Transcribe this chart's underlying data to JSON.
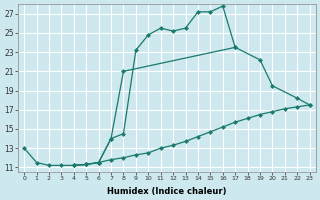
{
  "xlabel": "Humidex (Indice chaleur)",
  "bg_color": "#cde8ee",
  "grid_color": "#ffffff",
  "line_color": "#1a7a6e",
  "xlim": [
    -0.5,
    23.5
  ],
  "ylim": [
    10.5,
    28.0
  ],
  "yticks": [
    11,
    13,
    15,
    17,
    19,
    21,
    23,
    25,
    27
  ],
  "xticks": [
    0,
    1,
    2,
    3,
    4,
    5,
    6,
    7,
    8,
    9,
    10,
    11,
    12,
    13,
    14,
    15,
    16,
    17,
    18,
    19,
    20,
    21,
    22,
    23
  ],
  "line1": {
    "x": [
      0,
      1,
      2,
      3,
      4,
      5,
      6,
      7,
      8,
      9,
      10,
      11,
      12,
      13,
      14,
      15,
      16,
      17
    ],
    "y": [
      13.0,
      11.5,
      11.2,
      11.2,
      11.2,
      11.3,
      11.5,
      14.0,
      14.5,
      23.2,
      24.8,
      25.5,
      25.2,
      25.5,
      27.2,
      27.2,
      27.8,
      23.5
    ]
  },
  "line2": {
    "x": [
      4,
      5,
      6,
      7,
      8,
      17,
      19,
      20,
      22,
      23
    ],
    "y": [
      11.2,
      11.3,
      11.5,
      14.0,
      21.0,
      23.5,
      22.2,
      19.5,
      18.2,
      17.5
    ]
  },
  "line3": {
    "x": [
      4,
      5,
      6,
      7,
      8,
      9,
      10,
      11,
      12,
      13,
      14,
      15,
      16,
      17,
      18,
      19,
      20,
      21,
      22,
      23
    ],
    "y": [
      11.2,
      11.3,
      11.5,
      11.8,
      12.0,
      12.3,
      12.5,
      13.0,
      13.3,
      13.7,
      14.2,
      14.7,
      15.2,
      15.7,
      16.1,
      16.5,
      16.8,
      17.1,
      17.3,
      17.5
    ]
  }
}
